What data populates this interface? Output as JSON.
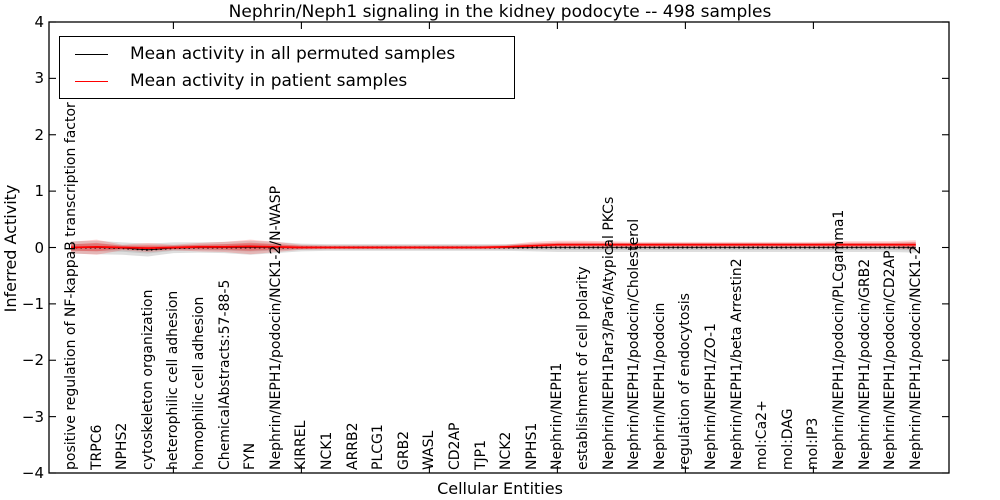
{
  "figure": {
    "background": "#ffffff",
    "text_color": "#000000"
  },
  "chart_data": {
    "type": "line",
    "title": "Nephrin/Neph1 signaling in the kidney podocyte -- 498 samples",
    "xlabel": "Cellular Entities",
    "ylabel": "Inferred Activity",
    "ylim": [
      -4,
      4
    ],
    "ytick_values": [
      4,
      3,
      2,
      1,
      0,
      -1,
      -2,
      -3,
      -4
    ],
    "ytick_labels": [
      "4",
      "3",
      "2",
      "1",
      "0",
      "−1",
      "−2",
      "−3",
      "−4"
    ],
    "grid": false,
    "legend_position": "upper left",
    "x_major_tick_indices": [
      4,
      9,
      14,
      19,
      24,
      29
    ],
    "categories": [
      "positive regulation of NF-kappaB transcription factor a",
      "TRPC6",
      "NPHS2",
      "cytoskeleton organization",
      "heterophilic cell adhesion",
      "homophilic cell adhesion",
      "ChemicalAbstracts:57-88-5",
      "FYN",
      "Nephrin/NEPH1/podocin/NCK1-2/N-WASP",
      "KIRREL",
      "NCK1",
      "ARRB2",
      "PLCG1",
      "GRB2",
      "WASL",
      "CD2AP",
      "TJP1",
      "NCK2",
      "NPHS1",
      "Nephrin/NEPH1",
      "establishment of cell polarity",
      "Nephrin/NEPH1Par3/Par6/Atypical PKCs",
      "Nephrin/NEPH1/podocin/Cholesterol",
      "Nephrin/NEPH1/podocin",
      "regulation of endocytosis",
      "Nephrin/NEPH1/ZO-1",
      "Nephrin/NEPH1/beta Arrestin2",
      "mol:Ca2+",
      "mol:DAG",
      "mol:IP3",
      "Nephrin/NEPH1/podocin/PLCgamma1",
      "Nephrin/NEPH1/podocin/GRB2",
      "Nephrin/NEPH1/podocin/CD2AP",
      "Nephrin/NEPH1/podocin/NCK1-2"
    ],
    "series": [
      {
        "name": "Mean activity in all permuted samples",
        "color": "#000000",
        "line_style": "dotted",
        "band_color": "#000000",
        "values": [
          0,
          0,
          -0.01,
          -0.04,
          -0.01,
          0,
          0,
          0,
          0,
          0,
          0,
          0,
          0,
          0,
          0,
          0,
          0,
          0,
          0,
          0,
          0,
          0,
          0,
          0,
          0,
          0,
          0,
          0,
          0,
          0,
          0,
          0,
          0,
          0
        ],
        "band_upper": [
          0.11,
          0.12,
          0.09,
          0.07,
          0.09,
          0.09,
          0.1,
          0.12,
          0.1,
          0.07,
          0.06,
          0.06,
          0.06,
          0.06,
          0.06,
          0.06,
          0.06,
          0.06,
          0.07,
          0.08,
          0.08,
          0.08,
          0.08,
          0.08,
          0.08,
          0.08,
          0.08,
          0.08,
          0.08,
          0.08,
          0.08,
          0.08,
          0.08,
          0.09
        ],
        "band_lower": [
          -0.11,
          -0.12,
          -0.13,
          -0.16,
          -0.1,
          -0.09,
          -0.1,
          -0.13,
          -0.1,
          -0.07,
          -0.06,
          -0.06,
          -0.06,
          -0.06,
          -0.06,
          -0.06,
          -0.06,
          -0.06,
          -0.07,
          -0.08,
          -0.08,
          -0.08,
          -0.08,
          -0.08,
          -0.08,
          -0.08,
          -0.08,
          -0.08,
          -0.08,
          -0.08,
          -0.08,
          -0.08,
          -0.08,
          -0.09
        ]
      },
      {
        "name": "Mean activity in patient samples",
        "color": "#ff0000",
        "line_style": "solid",
        "band_color": "#ff0000",
        "values": [
          0,
          0.01,
          0,
          -0.01,
          0,
          0.01,
          0.01,
          0.02,
          0.01,
          0,
          0,
          0,
          0,
          0,
          0,
          0,
          0,
          0.01,
          0.03,
          0.05,
          0.05,
          0.05,
          0.05,
          0.05,
          0.05,
          0.05,
          0.05,
          0.05,
          0.05,
          0.05,
          0.05,
          0.05,
          0.05,
          0.05
        ],
        "band_upper": [
          0.1,
          0.14,
          0.05,
          0.08,
          0.05,
          0.08,
          0.1,
          0.14,
          0.1,
          0.05,
          0.04,
          0.04,
          0.04,
          0.04,
          0.04,
          0.04,
          0.04,
          0.05,
          0.1,
          0.12,
          0.12,
          0.11,
          0.1,
          0.1,
          0.1,
          0.1,
          0.1,
          0.1,
          0.1,
          0.1,
          0.11,
          0.11,
          0.11,
          0.13
        ],
        "band_lower": [
          -0.1,
          -0.13,
          -0.05,
          -0.08,
          -0.05,
          -0.07,
          -0.08,
          -0.12,
          -0.08,
          -0.04,
          -0.03,
          -0.03,
          -0.03,
          -0.03,
          -0.03,
          -0.03,
          -0.03,
          -0.03,
          -0.02,
          -0.01,
          -0.01,
          -0.01,
          -0.01,
          -0.01,
          -0.01,
          -0.01,
          -0.01,
          -0.01,
          -0.01,
          -0.01,
          -0.01,
          -0.01,
          -0.01,
          -0.04
        ]
      }
    ]
  }
}
